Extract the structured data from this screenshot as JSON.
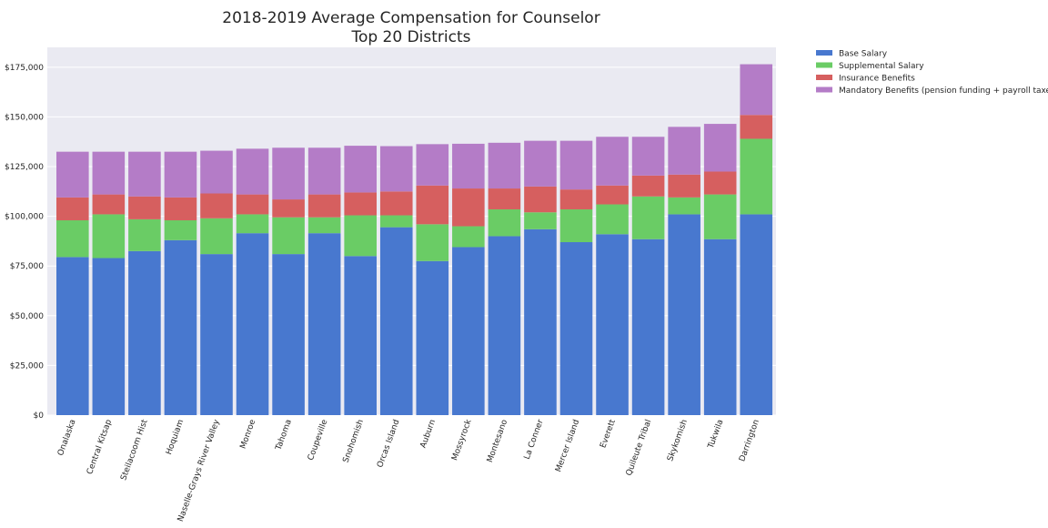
{
  "chart_data": {
    "type": "bar",
    "stacked": true,
    "title": "2018-2019 Average Compensation for Counselor",
    "subtitle": "Top 20 Districts",
    "xlabel": "",
    "ylabel": "",
    "ylim": [
      0,
      185000
    ],
    "y_ticks": [
      0,
      25000,
      50000,
      75000,
      100000,
      125000,
      150000,
      175000
    ],
    "y_tick_labels": [
      "$0",
      "$25,000",
      "$50,000",
      "$75,000",
      "$100,000",
      "$125,000",
      "$150,000",
      "$175,000"
    ],
    "grid": true,
    "legend_position": "outside top-right",
    "categories": [
      "Onalaska",
      "Central Kitsap",
      "Steilacoom Hist",
      "Hoquiam",
      "Naselle-Grays River Valley",
      "Monroe",
      "Tahoma",
      "Coupeville",
      "Snohomish",
      "Orcas Island",
      "Auburn",
      "Mossyrock",
      "Montesano",
      "La Conner",
      "Mercer Island",
      "Everett",
      "Quileute Tribal",
      "Skykomish",
      "Tukwila",
      "Darrington"
    ],
    "series": [
      {
        "name": "Base Salary",
        "color": "#4878cf",
        "values": [
          79500,
          79000,
          82500,
          88000,
          81000,
          91500,
          81000,
          91500,
          80000,
          94500,
          77500,
          84500,
          90000,
          93500,
          87000,
          91000,
          88500,
          101000,
          88500,
          101000
        ]
      },
      {
        "name": "Supplemental Salary",
        "color": "#6acc65",
        "values": [
          18500,
          22000,
          16000,
          10000,
          18000,
          9500,
          18500,
          8000,
          20500,
          6000,
          18500,
          10500,
          13500,
          8500,
          16500,
          15000,
          21500,
          8500,
          22500,
          38000
        ]
      },
      {
        "name": "Insurance Benefits",
        "color": "#d65f5f",
        "values": [
          11500,
          10000,
          11500,
          11500,
          12500,
          10000,
          9000,
          11500,
          11500,
          12000,
          19500,
          19000,
          10500,
          13000,
          10000,
          9500,
          10500,
          11500,
          11500,
          12000
        ]
      },
      {
        "name": "Mandatory Benefits (pension funding + payroll taxes)",
        "color": "#b47cc7",
        "values": [
          23000,
          21500,
          22500,
          23000,
          21500,
          23000,
          26000,
          23500,
          23500,
          22800,
          20800,
          22500,
          23000,
          23000,
          24500,
          24500,
          19500,
          24000,
          24000,
          25500
        ]
      }
    ]
  }
}
